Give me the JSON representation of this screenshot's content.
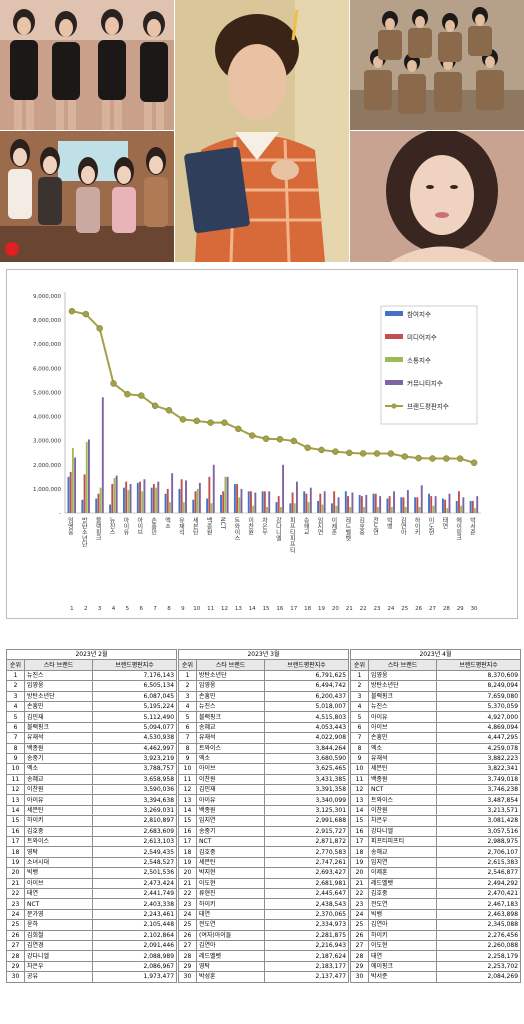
{
  "logo_mark": "reputation-logo",
  "chart_data": {
    "type": "bar+line",
    "y_ticks": [
      "9,000,000",
      "8,000,000",
      "7,000,000",
      "6,000,000",
      "5,000,000",
      "4,000,000",
      "3,000,000",
      "2,000,000",
      "1,000,000",
      "-"
    ],
    "ylim": [
      0,
      9000000
    ],
    "grid": false,
    "legend_position": "right",
    "categories": [
      "임영웅",
      "방탄소년단",
      "블랙핑크",
      "뉴진스",
      "아이유",
      "아이브",
      "손흥민",
      "엑소",
      "유재석",
      "세븐틴",
      "백종원",
      "NCT",
      "트와이스",
      "이찬원",
      "차은우",
      "강다니엘",
      "피프티피프티",
      "송해교",
      "임지연",
      "이제훈",
      "레드벨벳",
      "김호중",
      "전도연",
      "빅뱅",
      "김연아",
      "하이키",
      "이도현",
      "태연",
      "에이핑크",
      "박서준"
    ],
    "x_numbers": [
      "1",
      "2",
      "3",
      "4",
      "5",
      "6",
      "7",
      "8",
      "9",
      "10",
      "11",
      "12",
      "13",
      "14",
      "15",
      "16",
      "17",
      "18",
      "19",
      "20",
      "21",
      "22",
      "23",
      "24",
      "25",
      "26",
      "27",
      "28",
      "29",
      "30"
    ],
    "series": [
      {
        "name": "참여지수",
        "kind": "bar",
        "color": "#4472c4",
        "values": [
          1500000,
          550000,
          600000,
          350000,
          1050000,
          1250000,
          1050000,
          800000,
          1000000,
          550000,
          600000,
          750000,
          1200000,
          900000,
          900000,
          450000,
          400000,
          900000,
          500000,
          400000,
          900000,
          750000,
          800000,
          600000,
          650000,
          650000,
          800000,
          600000,
          500000,
          500000
        ]
      },
      {
        "name": "미디어지수",
        "kind": "bar",
        "color": "#c0504d",
        "values": [
          1700000,
          1600000,
          800000,
          1200000,
          1300000,
          1300000,
          1200000,
          1000000,
          1400000,
          900000,
          1500000,
          900000,
          1200000,
          900000,
          900000,
          700000,
          850000,
          800000,
          800000,
          900000,
          700000,
          700000,
          800000,
          700000,
          650000,
          650000,
          700000,
          550000,
          900000,
          500000
        ]
      },
      {
        "name": "소통지수",
        "kind": "bar",
        "color": "#9bbb59",
        "values": [
          2700000,
          2950000,
          1050000,
          1450000,
          950000,
          900000,
          1050000,
          450000,
          450000,
          1000000,
          400000,
          1500000,
          650000,
          300000,
          250000,
          250000,
          400000,
          450000,
          350000,
          300000,
          250000,
          250000,
          250000,
          250000,
          250000,
          250000,
          300000,
          200000,
          300000,
          200000
        ]
      },
      {
        "name": "커뮤니티지수",
        "kind": "bar",
        "color": "#8064a2",
        "values": [
          2300000,
          3050000,
          4800000,
          1550000,
          1200000,
          1400000,
          1300000,
          1650000,
          1350000,
          1250000,
          2000000,
          1500000,
          1000000,
          850000,
          900000,
          2000000,
          1300000,
          1050000,
          900000,
          650000,
          850000,
          750000,
          700000,
          900000,
          950000,
          1150000,
          700000,
          800000,
          650000,
          700000
        ]
      },
      {
        "name": "브랜드평판지수",
        "kind": "line",
        "color": "#a4a048",
        "values": [
          8370609,
          8249094,
          7659080,
          5370059,
          4927000,
          4869094,
          4447295,
          4259078,
          3882223,
          3822341,
          3749018,
          3746238,
          3487854,
          3213571,
          3081428,
          3057516,
          2988975,
          2706107,
          2615383,
          2546877,
          2494292,
          2470421,
          2467183,
          2463898,
          2345088,
          2276456,
          2260088,
          2258179,
          2253702,
          2084269
        ]
      }
    ]
  },
  "tables": [
    {
      "month": "2023년 2월",
      "headers": [
        "순위",
        "스타 브랜드",
        "브랜드평판지수"
      ],
      "rows": [
        [
          "1",
          "뉴진스",
          "7,176,143"
        ],
        [
          "2",
          "임영웅",
          "6,505,134"
        ],
        [
          "3",
          "방탄소년단",
          "6,087,045"
        ],
        [
          "4",
          "손흥민",
          "5,195,224"
        ],
        [
          "5",
          "김민재",
          "5,112,490"
        ],
        [
          "6",
          "블랙핑크",
          "5,094,077"
        ],
        [
          "7",
          "유재석",
          "4,530,938"
        ],
        [
          "8",
          "백종원",
          "4,462,997"
        ],
        [
          "9",
          "송중기",
          "3,923,219"
        ],
        [
          "10",
          "엑소",
          "3,788,757"
        ],
        [
          "11",
          "송혜교",
          "3,658,958"
        ],
        [
          "12",
          "이찬원",
          "3,590,036"
        ],
        [
          "13",
          "아이유",
          "3,394,638"
        ],
        [
          "14",
          "세븐틴",
          "3,269,031"
        ],
        [
          "15",
          "하이키",
          "2,810,897"
        ],
        [
          "16",
          "김호중",
          "2,683,609"
        ],
        [
          "17",
          "트와이스",
          "2,613,103"
        ],
        [
          "18",
          "영탁",
          "2,549,435"
        ],
        [
          "19",
          "소녀시대",
          "2,548,527"
        ],
        [
          "20",
          "빅뱅",
          "2,501,536"
        ],
        [
          "21",
          "아이브",
          "2,473,424"
        ],
        [
          "22",
          "태연",
          "2,441,749"
        ],
        [
          "23",
          "NCT",
          "2,403,338"
        ],
        [
          "24",
          "문가영",
          "2,243,461"
        ],
        [
          "25",
          "윤하",
          "2,105,448"
        ],
        [
          "26",
          "김희철",
          "2,102,864"
        ],
        [
          "27",
          "김연경",
          "2,091,446"
        ],
        [
          "28",
          "강다니엘",
          "2,088,989"
        ],
        [
          "29",
          "차은우",
          "2,086,967"
        ],
        [
          "30",
          "공유",
          "1,973,477"
        ]
      ]
    },
    {
      "month": "2023년 3월",
      "headers": [
        "순위",
        "스타 브랜드",
        "브랜드평판지수"
      ],
      "rows": [
        [
          "1",
          "방탄소년단",
          "6,791,625"
        ],
        [
          "2",
          "임영웅",
          "6,494,742"
        ],
        [
          "3",
          "손흥민",
          "6,200,437"
        ],
        [
          "4",
          "뉴진스",
          "5,018,007"
        ],
        [
          "5",
          "블랙핑크",
          "4,515,803"
        ],
        [
          "6",
          "송혜교",
          "4,053,443"
        ],
        [
          "7",
          "유재석",
          "4,022,908"
        ],
        [
          "8",
          "트와이스",
          "3,844,264"
        ],
        [
          "9",
          "엑소",
          "3,680,590"
        ],
        [
          "10",
          "아이브",
          "3,625,465"
        ],
        [
          "11",
          "이찬원",
          "3,431,385"
        ],
        [
          "12",
          "김민재",
          "3,391,358"
        ],
        [
          "13",
          "아이유",
          "3,340,099"
        ],
        [
          "14",
          "백종원",
          "3,125,301"
        ],
        [
          "15",
          "임지연",
          "2,991,688"
        ],
        [
          "16",
          "송중기",
          "2,915,727"
        ],
        [
          "17",
          "NCT",
          "2,871,872"
        ],
        [
          "18",
          "김호중",
          "2,770,583"
        ],
        [
          "19",
          "세븐틴",
          "2,747,261"
        ],
        [
          "20",
          "박지현",
          "2,693,427"
        ],
        [
          "21",
          "이도현",
          "2,681,981"
        ],
        [
          "22",
          "류현진",
          "2,445,647"
        ],
        [
          "23",
          "하이키",
          "2,438,543"
        ],
        [
          "24",
          "태연",
          "2,370,065"
        ],
        [
          "25",
          "전도연",
          "2,334,973"
        ],
        [
          "26",
          "(여자)아이들",
          "2,281,875"
        ],
        [
          "27",
          "김연아",
          "2,216,943"
        ],
        [
          "28",
          "레드벨벳",
          "2,187,624"
        ],
        [
          "29",
          "영탁",
          "2,183,177"
        ],
        [
          "30",
          "박성훈",
          "2,137,477"
        ]
      ]
    },
    {
      "month": "2023년 4월",
      "headers": [
        "순위",
        "스타 브랜드",
        "브랜드평판지수"
      ],
      "rows": [
        [
          "1",
          "임영웅",
          "8,370,609"
        ],
        [
          "2",
          "방탄소년단",
          "8,249,094"
        ],
        [
          "3",
          "블랙핑크",
          "7,659,080"
        ],
        [
          "4",
          "뉴진스",
          "5,370,059"
        ],
        [
          "5",
          "아이유",
          "4,927,000"
        ],
        [
          "6",
          "아이브",
          "4,869,094"
        ],
        [
          "7",
          "손흥민",
          "4,447,295"
        ],
        [
          "8",
          "엑소",
          "4,259,078"
        ],
        [
          "9",
          "유재석",
          "3,882,223"
        ],
        [
          "10",
          "세븐틴",
          "3,822,341"
        ],
        [
          "11",
          "백종원",
          "3,749,018"
        ],
        [
          "12",
          "NCT",
          "3,746,238"
        ],
        [
          "13",
          "트와이스",
          "3,487,854"
        ],
        [
          "14",
          "이찬원",
          "3,213,571"
        ],
        [
          "15",
          "차은우",
          "3,081,428"
        ],
        [
          "16",
          "강다니엘",
          "3,057,516"
        ],
        [
          "17",
          "피프티피프티",
          "2,988,975"
        ],
        [
          "18",
          "송해교",
          "2,706,107"
        ],
        [
          "19",
          "임지연",
          "2,615,383"
        ],
        [
          "20",
          "이제훈",
          "2,546,877"
        ],
        [
          "21",
          "레드벨벳",
          "2,494,292"
        ],
        [
          "22",
          "김호중",
          "2,470,421"
        ],
        [
          "23",
          "전도연",
          "2,467,183"
        ],
        [
          "24",
          "빅뱅",
          "2,463,898"
        ],
        [
          "25",
          "김연아",
          "2,345,088"
        ],
        [
          "26",
          "하이키",
          "2,276,456"
        ],
        [
          "27",
          "이도현",
          "2,260,088"
        ],
        [
          "28",
          "태연",
          "2,258,179"
        ],
        [
          "29",
          "에이핑크",
          "2,253,702"
        ],
        [
          "30",
          "박서준",
          "2,084,269"
        ]
      ]
    }
  ]
}
